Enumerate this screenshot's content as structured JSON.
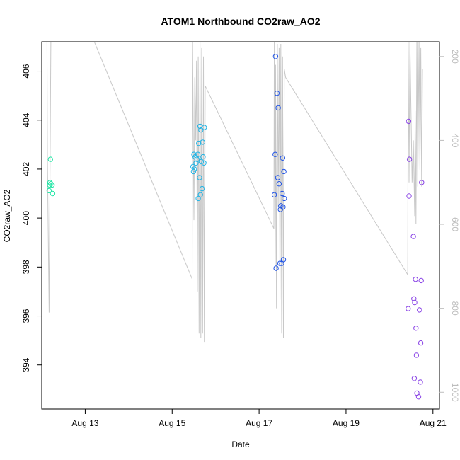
{
  "chart_data": {
    "type": "scatter",
    "title": "ATOM1 Northbound CO2raw_AO2",
    "xlabel": "Date",
    "ylabel": "CO2raw_AO2",
    "x_unit": "days of August",
    "xlim": [
      12.0,
      21.15
    ],
    "ylim": [
      392.2,
      407.2
    ],
    "x_ticks": [
      {
        "value": 13,
        "label": "Aug 13"
      },
      {
        "value": 15,
        "label": "Aug 15"
      },
      {
        "value": 17,
        "label": "Aug 17"
      },
      {
        "value": 19,
        "label": "Aug 19"
      },
      {
        "value": 21,
        "label": "Aug 21"
      }
    ],
    "y_ticks": [
      394,
      396,
      398,
      400,
      402,
      404,
      406
    ],
    "y2_ticks": [
      200,
      400,
      600,
      800,
      1000
    ],
    "y2lim": [
      1040,
      165
    ],
    "grid": false,
    "legend": "none",
    "point_series": [
      {
        "color": "#22e6a6",
        "points": [
          [
            12.17,
            401.12
          ],
          [
            12.18,
            401.35
          ],
          [
            12.19,
            401.45
          ],
          [
            12.2,
            402.4
          ],
          [
            12.21,
            401.4
          ],
          [
            12.24,
            401.35
          ],
          [
            12.25,
            401.0
          ]
        ]
      },
      {
        "color": "#22b5e6",
        "points": [
          [
            15.48,
            402.1
          ],
          [
            15.49,
            401.9
          ],
          [
            15.5,
            402.6
          ],
          [
            15.51,
            402.0
          ],
          [
            15.53,
            402.5
          ],
          [
            15.55,
            402.25
          ],
          [
            15.57,
            402.4
          ],
          [
            15.59,
            402.6
          ],
          [
            15.6,
            400.8
          ],
          [
            15.61,
            403.05
          ],
          [
            15.63,
            401.65
          ],
          [
            15.64,
            403.75
          ],
          [
            15.65,
            400.95
          ],
          [
            15.66,
            403.6
          ],
          [
            15.67,
            402.3
          ],
          [
            15.69,
            401.2
          ],
          [
            15.7,
            403.1
          ],
          [
            15.71,
            402.5
          ],
          [
            15.73,
            402.25
          ],
          [
            15.74,
            403.7
          ]
        ]
      },
      {
        "color": "#2255e6",
        "points": [
          [
            17.35,
            400.95
          ],
          [
            17.37,
            402.6
          ],
          [
            17.38,
            406.6
          ],
          [
            17.39,
            397.95
          ],
          [
            17.41,
            405.1
          ],
          [
            17.43,
            401.65
          ],
          [
            17.44,
            404.5
          ],
          [
            17.46,
            401.4
          ],
          [
            17.48,
            398.15
          ],
          [
            17.49,
            400.35
          ],
          [
            17.5,
            400.5
          ],
          [
            17.52,
            398.15
          ],
          [
            17.53,
            401.0
          ],
          [
            17.54,
            402.45
          ],
          [
            17.55,
            400.45
          ],
          [
            17.56,
            398.3
          ],
          [
            17.57,
            401.9
          ],
          [
            17.58,
            400.8
          ]
        ]
      },
      {
        "color": "#8a44e6",
        "points": [
          [
            20.43,
            396.3
          ],
          [
            20.44,
            403.95
          ],
          [
            20.45,
            400.9
          ],
          [
            20.46,
            402.4
          ],
          [
            20.55,
            399.25
          ],
          [
            20.56,
            396.7
          ],
          [
            20.57,
            393.45
          ],
          [
            20.58,
            396.55
          ],
          [
            20.6,
            397.5
          ],
          [
            20.61,
            395.5
          ],
          [
            20.62,
            394.4
          ],
          [
            20.63,
            392.85
          ],
          [
            20.67,
            392.7
          ],
          [
            20.69,
            396.25
          ],
          [
            20.71,
            393.3
          ],
          [
            20.72,
            394.9
          ],
          [
            20.73,
            397.45
          ],
          [
            20.74,
            401.45
          ]
        ]
      }
    ],
    "gray_line": {
      "color": "#c8c8c8",
      "axis": "right",
      "points": [
        [
          12.12,
          160
        ],
        [
          12.13,
          440
        ],
        [
          12.17,
          810
        ],
        [
          12.21,
          160
        ],
        [
          12.23,
          120
        ],
        [
          12.24,
          160
        ],
        [
          12.26,
          140
        ],
        [
          13.07,
          130
        ],
        [
          15.46,
          730
        ],
        [
          15.47,
          160
        ],
        [
          15.5,
          590
        ],
        [
          15.52,
          250
        ],
        [
          15.54,
          400
        ],
        [
          15.56,
          210
        ],
        [
          15.58,
          760
        ],
        [
          15.6,
          200
        ],
        [
          15.62,
          860
        ],
        [
          15.64,
          160
        ],
        [
          15.66,
          870
        ],
        [
          15.68,
          180
        ],
        [
          15.7,
          860
        ],
        [
          15.72,
          200
        ],
        [
          15.74,
          880
        ],
        [
          15.76,
          270
        ],
        [
          17.34,
          610
        ],
        [
          17.35,
          160
        ],
        [
          17.37,
          700
        ],
        [
          17.38,
          220
        ],
        [
          17.4,
          800
        ],
        [
          17.42,
          170
        ],
        [
          17.44,
          560
        ],
        [
          17.46,
          180
        ],
        [
          17.48,
          780
        ],
        [
          17.5,
          170
        ],
        [
          17.52,
          860
        ],
        [
          17.54,
          200
        ],
        [
          17.56,
          870
        ],
        [
          17.58,
          230
        ],
        [
          17.61,
          250
        ],
        [
          20.42,
          720
        ],
        [
          20.43,
          160
        ],
        [
          20.45,
          500
        ],
        [
          20.47,
          160
        ],
        [
          20.52,
          500
        ],
        [
          20.55,
          400
        ],
        [
          20.58,
          580
        ],
        [
          20.59,
          330
        ],
        [
          20.61,
          600
        ],
        [
          20.63,
          140
        ],
        [
          20.65,
          510
        ],
        [
          20.68,
          160
        ],
        [
          20.7,
          470
        ],
        [
          20.72,
          180
        ],
        [
          20.74,
          510
        ],
        [
          20.76,
          230
        ]
      ]
    }
  }
}
